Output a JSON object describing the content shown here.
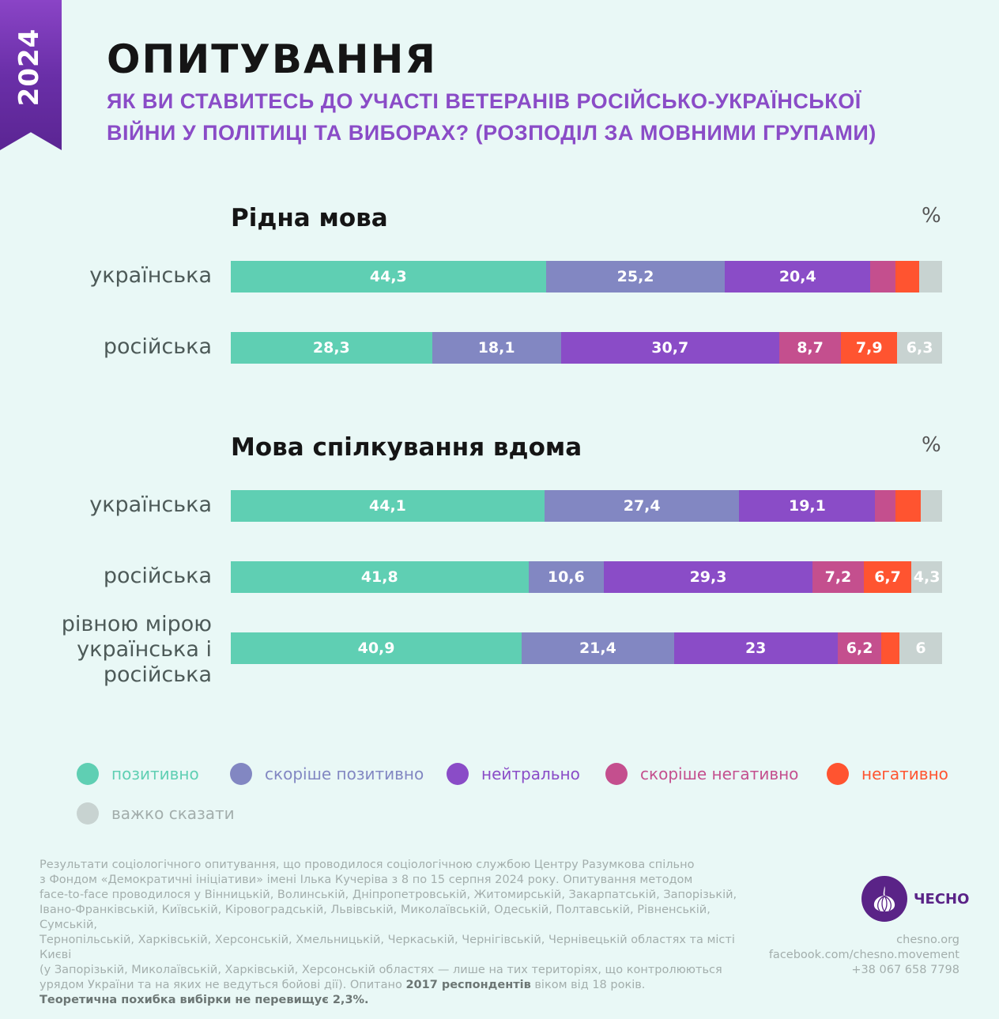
{
  "header": {
    "year": "2024",
    "title": "ОПИТУВАННЯ",
    "subtitle_line1": "ЯК ВИ СТАВИТЕСЬ ДО УЧАСТІ ВЕТЕРАНІВ РОСІЙСЬКО-УКРАЇНСЬКОЇ",
    "subtitle_line2": "ВІЙНИ У ПОЛІТИЦІ ТА ВИБОРАХ? (РОЗПОДІЛ ЗА МОВНИМИ ГРУПАМИ)"
  },
  "colors": {
    "positive": "#5fcfb3",
    "rather_positive": "#8287c2",
    "neutral": "#8a4cc7",
    "rather_negative": "#c44f8e",
    "negative": "#ff5430",
    "hard_to_say": "#c8d3d1",
    "accent": "#8a4cc7",
    "brand": "#5a2387"
  },
  "chart_data": [
    {
      "type": "bar",
      "orientation": "horizontal-stacked-100",
      "title": "Рідна мова",
      "unit_label": "%",
      "categories": [
        "українська",
        "російська"
      ],
      "series": [
        {
          "name": "позитивно",
          "values": [
            44.3,
            28.3
          ],
          "labels": [
            "44,3",
            "28,3"
          ]
        },
        {
          "name": "скоріше позитивно",
          "values": [
            25.2,
            18.1
          ],
          "labels": [
            "25,2",
            "18,1"
          ]
        },
        {
          "name": "нейтрально",
          "values": [
            20.4,
            30.7
          ],
          "labels": [
            "20,4",
            "30,7"
          ]
        },
        {
          "name": "скоріше негативно",
          "values": [
            3.6,
            8.7
          ],
          "labels": [
            "",
            "8,7"
          ]
        },
        {
          "name": "негативно",
          "values": [
            3.3,
            7.9
          ],
          "labels": [
            "",
            "7,9"
          ]
        },
        {
          "name": "важко сказати",
          "values": [
            3.2,
            6.3
          ],
          "labels": [
            "",
            "6,3"
          ]
        }
      ]
    },
    {
      "type": "bar",
      "orientation": "horizontal-stacked-100",
      "title": "Мова спілкування вдома",
      "unit_label": "%",
      "categories": [
        "українська",
        "російська",
        "рівною мірою українська і російська"
      ],
      "series": [
        {
          "name": "позитивно",
          "values": [
            44.1,
            41.8,
            40.9
          ],
          "labels": [
            "44,1",
            "41,8",
            "40,9"
          ]
        },
        {
          "name": "скоріше позитивно",
          "values": [
            27.4,
            10.6,
            21.4
          ],
          "labels": [
            "27,4",
            "10,6",
            "21,4"
          ]
        },
        {
          "name": "нейтрально",
          "values": [
            19.1,
            29.3,
            23
          ],
          "labels": [
            "19,1",
            "29,3",
            "23"
          ]
        },
        {
          "name": "скоріше негативно",
          "values": [
            2.8,
            7.2,
            6.2
          ],
          "labels": [
            "",
            "7,2",
            "6,2"
          ]
        },
        {
          "name": "негативно",
          "values": [
            3.6,
            6.7,
            2.5
          ],
          "labels": [
            "",
            "6,7",
            ""
          ]
        },
        {
          "name": "важко сказати",
          "values": [
            3.0,
            4.3,
            6
          ],
          "labels": [
            "",
            "4,3",
            "6"
          ]
        }
      ]
    }
  ],
  "legend": [
    {
      "label": "позитивно",
      "color_key": "positive"
    },
    {
      "label": "скоріше позитивно",
      "color_key": "rather_positive"
    },
    {
      "label": "нейтрально",
      "color_key": "neutral"
    },
    {
      "label": "скоріше негативно",
      "color_key": "rather_negative"
    },
    {
      "label": "негативно",
      "color_key": "negative"
    },
    {
      "label": "важко сказати",
      "color_key": "hard_to_say"
    }
  ],
  "footnote": {
    "lines": [
      "Результати соціологічного опитування, що проводилося  соціологічною службою Центру Разумкова спільно",
      "з Фондом «Демократичні ініціативи» імені Ілька Кучеріва з 8 по 15 серпня 2024 року. Опитування методом",
      "face-to-face проводилося у Вінницькій, Волинській, Дніпропетровській, Житомирській, Закарпатській, Запорізькій,",
      "Івано-Франківській, Київській, Кіровоградській, Львівській, Миколаївській, Одеській, Полтавській, Рівненській, Сумській,",
      "Тернопільській, Харківській, Херсонській, Хмельницькій, Черкаській, Чернігівській, Чернівецькій областях та місті Києві",
      "(у Запорізькій, Миколаївській, Харківській, Херсонській областях — лише на тих територіях, що контролюються"
    ],
    "line7_prefix": "урядом України та на яких не ведуться бойові дії).  Опитано ",
    "line7_bold": "2017 респондентів",
    "line7_suffix": " віком від 18 років.",
    "margin_of_error": "Теоретична похибка вибірки не перевищує 2,3%."
  },
  "brand": {
    "name": "ЧЕСНО",
    "website": "chesno.org",
    "facebook": "facebook.com/chesno.movement",
    "phone": "+38 067 658 7798"
  }
}
